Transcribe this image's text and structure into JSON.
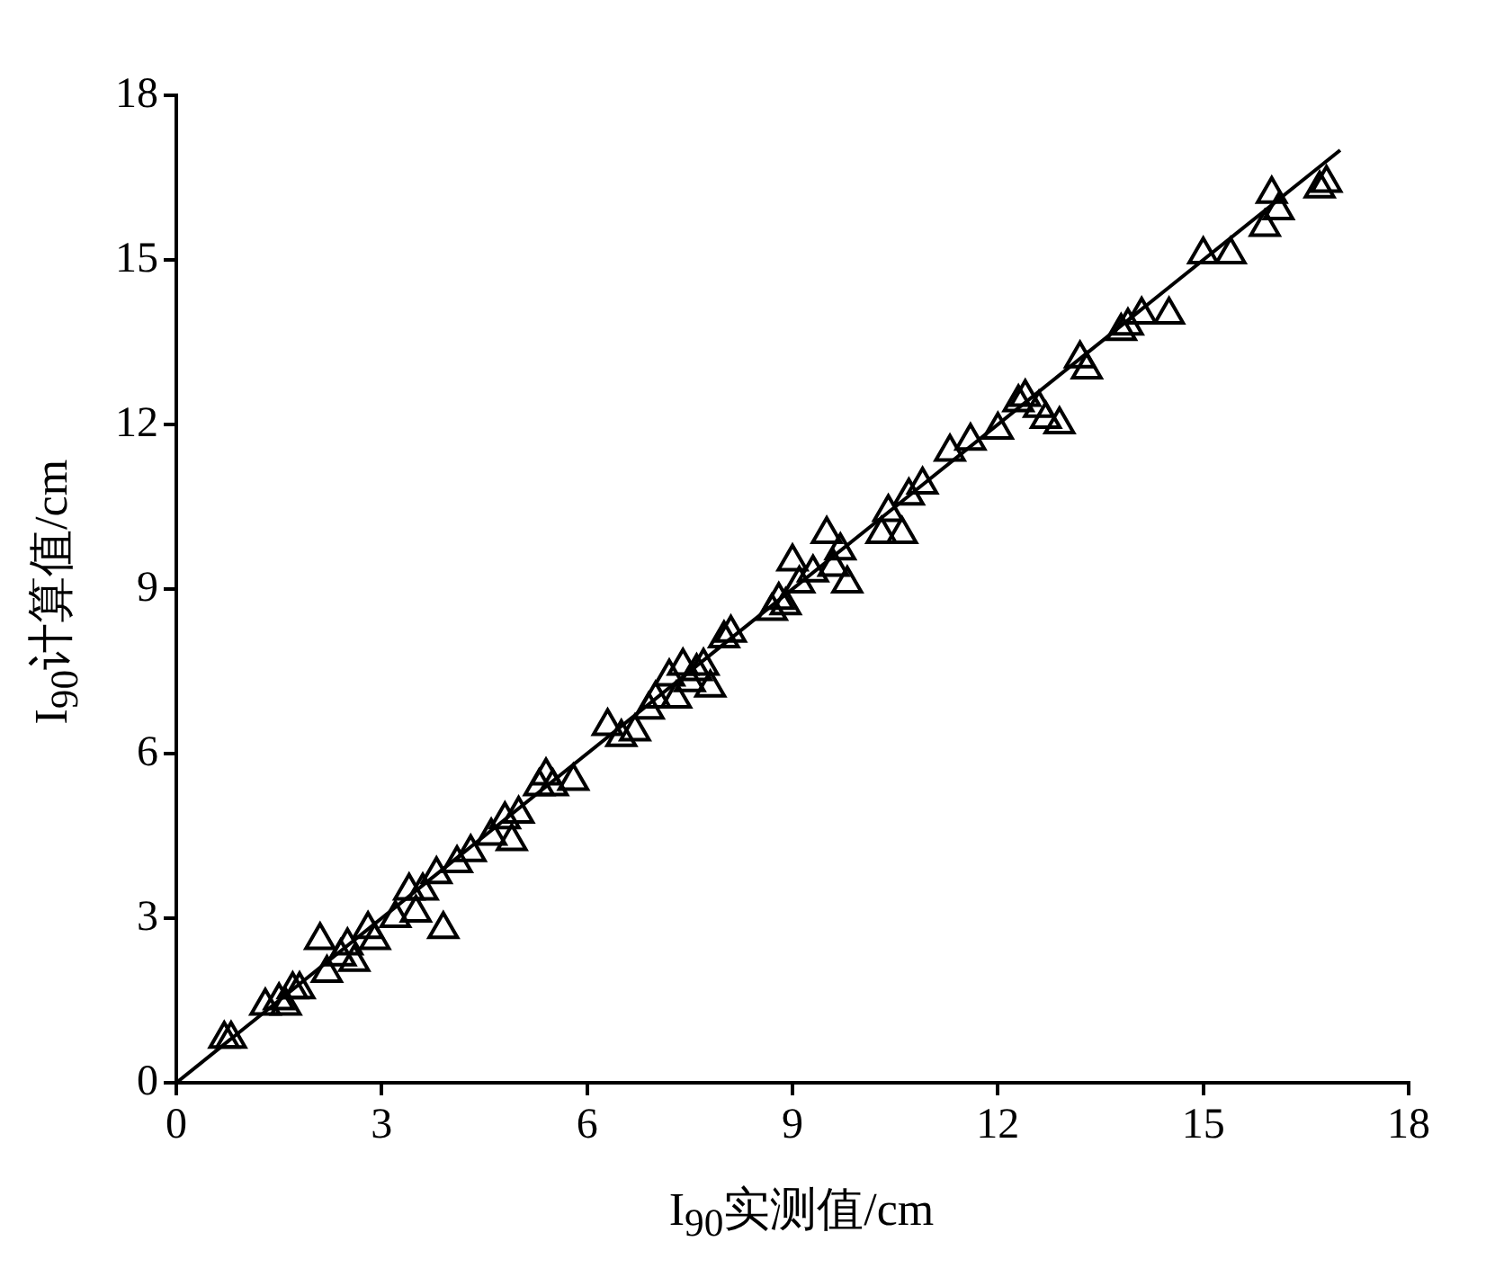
{
  "chart_data": {
    "type": "scatter",
    "xlabel": "I$_{90}$实测值/cm",
    "ylabel": "I$_{90}$计算值/cm",
    "xlim": [
      0,
      18
    ],
    "ylim": [
      0,
      18
    ],
    "xticks": [
      0,
      3,
      6,
      9,
      12,
      15,
      18
    ],
    "yticks": [
      0,
      3,
      6,
      9,
      12,
      15,
      18
    ],
    "series": [
      {
        "marker": "triangle",
        "color": "#000000",
        "x": [
          0.7,
          0.8,
          1.3,
          1.5,
          1.6,
          1.7,
          1.8,
          2.1,
          2.2,
          2.4,
          2.5,
          2.6,
          2.8,
          2.9,
          3.2,
          3.4,
          3.5,
          3.6,
          3.8,
          3.9,
          4.1,
          4.3,
          4.6,
          4.8,
          4.9,
          5.0,
          5.3,
          5.4,
          5.5,
          5.8,
          6.3,
          6.5,
          6.7,
          6.9,
          7.0,
          7.2,
          7.3,
          7.4,
          7.5,
          7.6,
          7.7,
          7.8,
          8.0,
          8.1,
          8.7,
          8.8,
          8.9,
          9.0,
          9.1,
          9.3,
          9.5,
          9.6,
          9.7,
          9.8,
          10.3,
          10.4,
          10.6,
          10.7,
          10.9,
          11.3,
          11.6,
          12.0,
          12.3,
          12.4,
          12.6,
          12.7,
          12.9,
          13.2,
          13.3,
          13.8,
          13.9,
          14.1,
          14.5,
          15.0,
          15.4,
          15.9,
          16.0,
          16.1,
          16.7,
          16.8
        ],
        "values": [
          0.8,
          0.8,
          1.4,
          1.5,
          1.4,
          1.7,
          1.7,
          2.6,
          2.0,
          2.3,
          2.5,
          2.2,
          2.8,
          2.6,
          3.0,
          3.5,
          3.1,
          3.5,
          3.8,
          2.8,
          4.0,
          4.2,
          4.5,
          4.8,
          4.4,
          4.9,
          5.4,
          5.6,
          5.4,
          5.5,
          6.5,
          6.3,
          6.4,
          6.8,
          7.0,
          7.4,
          7.0,
          7.6,
          7.3,
          7.5,
          7.6,
          7.2,
          8.1,
          8.2,
          8.6,
          8.8,
          8.7,
          9.5,
          9.1,
          9.3,
          10.0,
          9.4,
          9.7,
          9.1,
          10.0,
          10.4,
          10.0,
          10.7,
          10.9,
          11.5,
          11.7,
          11.9,
          12.4,
          12.5,
          12.3,
          12.1,
          12.0,
          13.2,
          13.0,
          13.7,
          13.8,
          14.0,
          14.0,
          15.1,
          15.1,
          15.6,
          16.2,
          15.9,
          16.3,
          16.4
        ]
      },
      {
        "type": "line",
        "color": "#000000",
        "x": [
          0,
          17
        ],
        "values": [
          0,
          17
        ]
      }
    ]
  }
}
